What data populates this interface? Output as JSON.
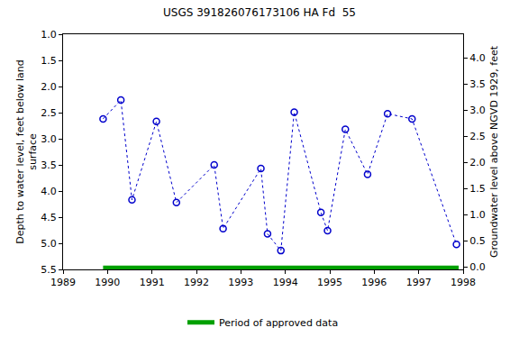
{
  "chart_data": {
    "type": "line",
    "title": "USGS 391826076173106 HA Fd  55",
    "ylabel": [
      "Depth to water level, feet below land",
      "surface"
    ],
    "y2label": "Groundwater level above NGVD 1929, feet",
    "xlim": [
      1989,
      1998
    ],
    "xticks": [
      1989,
      1990,
      1991,
      1992,
      1993,
      1994,
      1995,
      1996,
      1997,
      1998
    ],
    "ylim": [
      5.5,
      1.0
    ],
    "yticks": [
      {
        "value": 1.0,
        "label": "1.0"
      },
      {
        "value": 1.5,
        "label": "1.5"
      },
      {
        "value": 2.0,
        "label": "2.0"
      },
      {
        "value": 2.5,
        "label": "2.5"
      },
      {
        "value": 3.0,
        "label": "3.0"
      },
      {
        "value": 3.5,
        "label": "3.5"
      },
      {
        "value": 4.0,
        "label": "4.0"
      },
      {
        "value": 4.5,
        "label": "4.5"
      },
      {
        "value": 5.0,
        "label": "5.0"
      },
      {
        "value": 5.5,
        "label": "5.5"
      }
    ],
    "y2lim": [
      -0.05,
      4.45
    ],
    "y2ticks": [
      {
        "value": 0,
        "label": "0.0"
      },
      {
        "value": 0.5,
        "label": "0.5"
      },
      {
        "value": 1.0,
        "label": "1.0"
      },
      {
        "value": 1.5,
        "label": "1.5"
      },
      {
        "value": 2.0,
        "label": "2.0"
      },
      {
        "value": 2.5,
        "label": "2.5"
      },
      {
        "value": 3.0,
        "label": "3.0"
      },
      {
        "value": 3.5,
        "label": "3.5"
      },
      {
        "value": 4.0,
        "label": "4.0"
      }
    ],
    "grid": false,
    "legend": "bottom",
    "series": [
      {
        "color": "#0000cc",
        "marker": "circle-open",
        "line_style": "dot",
        "x": [
          1989.9,
          1990.3,
          1990.55,
          1991.1,
          1991.55,
          1992.4,
          1992.6,
          1993.45,
          1993.6,
          1993.9,
          1994.2,
          1994.8,
          1994.95,
          1995.35,
          1995.85,
          1996.3,
          1996.85,
          1997.85
        ],
        "values": [
          2.62,
          2.26,
          4.17,
          2.67,
          4.22,
          3.5,
          4.72,
          3.57,
          4.82,
          5.14,
          2.49,
          4.41,
          4.76,
          2.82,
          3.68,
          2.52,
          2.62,
          5.02
        ]
      },
      {
        "name": "Period of approved data",
        "color": "#00a000",
        "line_style": "solid",
        "x": [
          1989.9,
          1997.9
        ],
        "values": [
          5.47,
          5.47
        ]
      }
    ]
  }
}
